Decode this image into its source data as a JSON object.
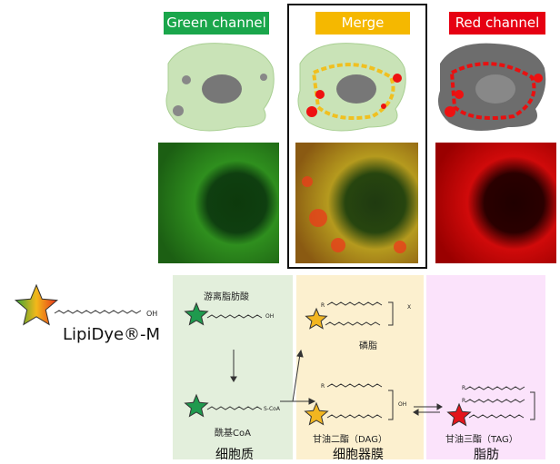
{
  "channels": [
    {
      "label": "Green channel",
      "color": "#1aa64b"
    },
    {
      "label": "Merge",
      "color": "#f5b800"
    },
    {
      "label": "Red channel",
      "color": "#e60012"
    }
  ],
  "probe": {
    "name": "LipiDye®-M",
    "acid_label": "OH"
  },
  "compartments": [
    {
      "label": "细胞质",
      "bg": "#e3efdc"
    },
    {
      "label": "细胞器膜",
      "bg": "#fcf0cf"
    },
    {
      "label": "脂肪",
      "bg": "#fbe3fb"
    }
  ],
  "molecules": {
    "free_fatty_acid": "游离脂肪酸",
    "ffa_end": "OH",
    "acyl_coa": "酰基CoA",
    "acyl_coa_end": "S-CoA",
    "phospholipid": "磷脂",
    "dag": "甘油二酯（DAG）",
    "dag_oh": "OH",
    "tag": "甘油三酯（TAG）",
    "r": "R",
    "x": "X"
  },
  "star_colors": {
    "green": "#1f9a4e",
    "yellow": "#f2b620",
    "red": "#e3141b"
  }
}
